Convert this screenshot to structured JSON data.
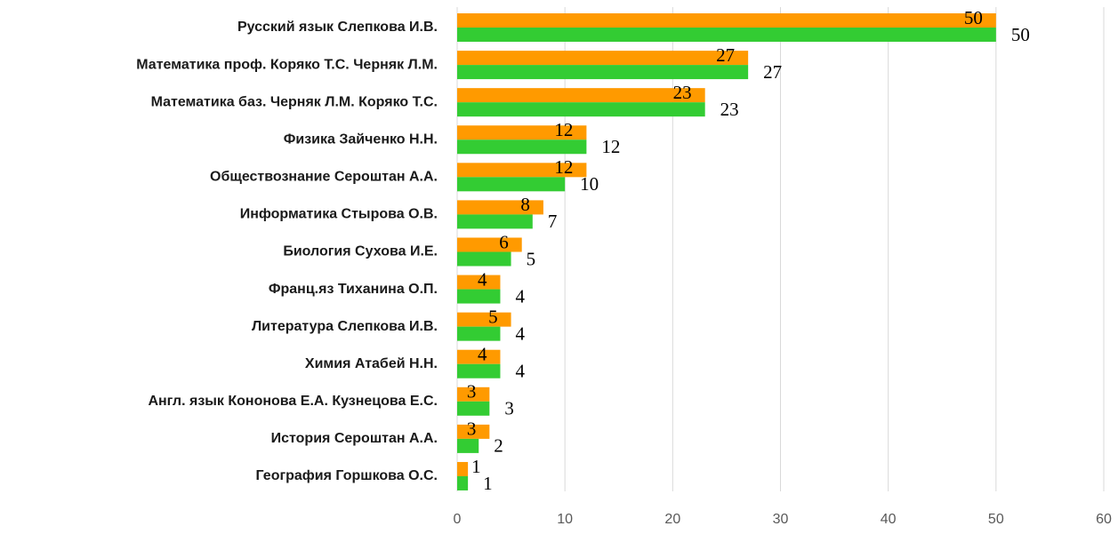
{
  "chart_data": {
    "type": "bar",
    "orientation": "horizontal",
    "categories": [
      "Русский язык Слепкова И.В.",
      "Математика проф. Коряко Т.С. Черняк Л.М.",
      "Математика баз. Черняк Л.М. Коряко Т.С.",
      "Физика Зайченко Н.Н.",
      "Обществознание Сероштан А.А.",
      "Информатика Стырова О.В.",
      "Биология Сухова И.Е.",
      "Франц.яз Тиханина О.П.",
      "Литература Слепкова И.В.",
      "Химия Атабей Н.Н.",
      "Англ. язык Кононова Е.А. Кузнецова Е.С.",
      "История Сероштан А.А.",
      "География Горшкова О.С."
    ],
    "series": [
      {
        "color": "#ff9a00",
        "values": [
          50,
          27,
          23,
          12,
          12,
          8,
          6,
          4,
          5,
          4,
          3,
          3,
          1
        ]
      },
      {
        "color": "#33cc33",
        "values": [
          50,
          27,
          23,
          12,
          10,
          7,
          5,
          4,
          4,
          4,
          3,
          2,
          1
        ]
      }
    ],
    "xlim": [
      0,
      60
    ],
    "xticks": [
      0,
      10,
      20,
      30,
      40,
      50,
      60
    ],
    "grid": true
  }
}
